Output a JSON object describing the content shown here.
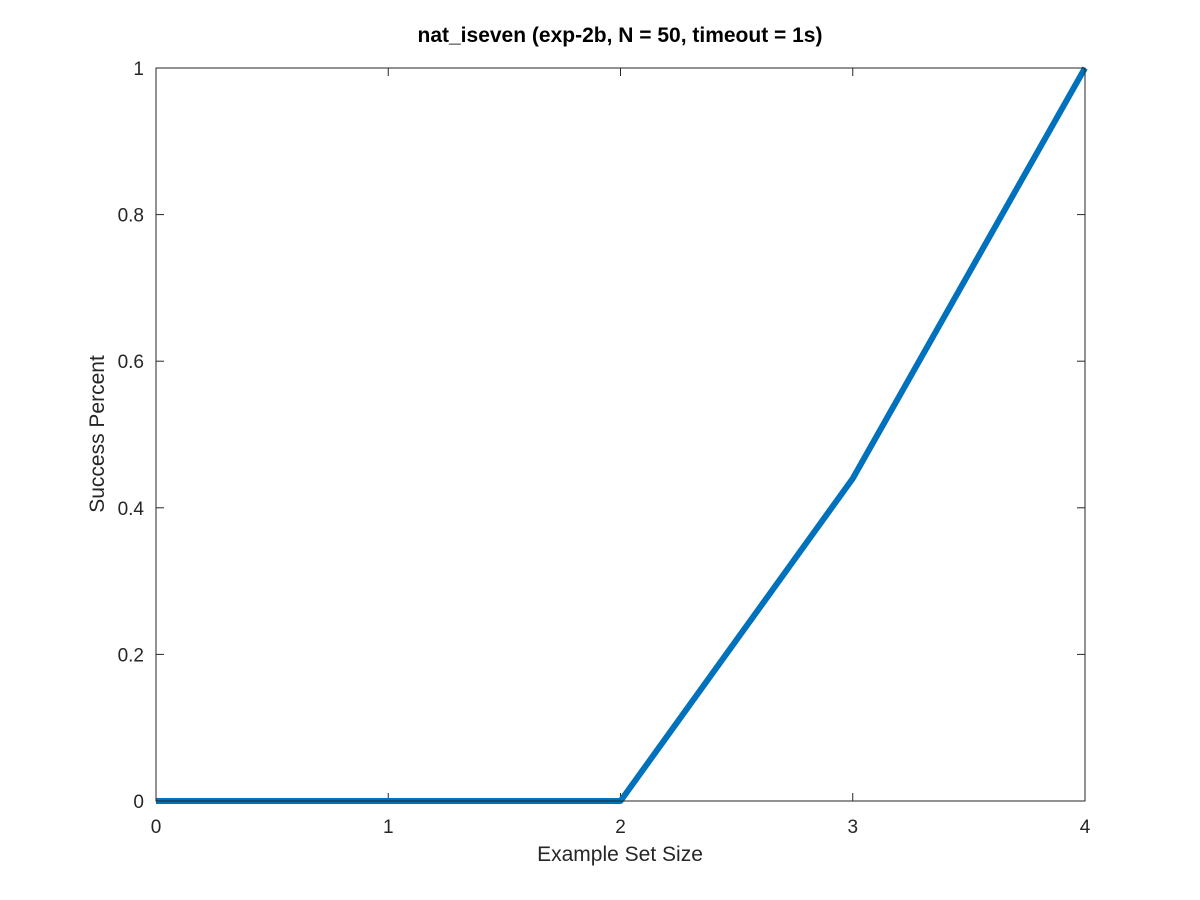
{
  "chart_data": {
    "type": "line",
    "title": "nat_iseven (exp-2b, N = 50, timeout = 1s)",
    "xlabel": "Example Set Size",
    "ylabel": "Success Percent",
    "xlim": [
      0,
      4
    ],
    "ylim": [
      0,
      1
    ],
    "xticks": [
      0,
      1,
      2,
      3,
      4
    ],
    "xtick_labels": [
      "0",
      "1",
      "2",
      "3",
      "4"
    ],
    "yticks": [
      0,
      0.2,
      0.4,
      0.6,
      0.8,
      1
    ],
    "ytick_labels": [
      "0",
      "0.2",
      "0.4",
      "0.6",
      "0.8",
      "1"
    ],
    "grid": false,
    "box": true,
    "series": [
      {
        "x": [
          0,
          1,
          2,
          3,
          4
        ],
        "y": [
          0,
          0,
          0,
          0.44,
          1
        ],
        "color": "#0072BD"
      }
    ]
  }
}
